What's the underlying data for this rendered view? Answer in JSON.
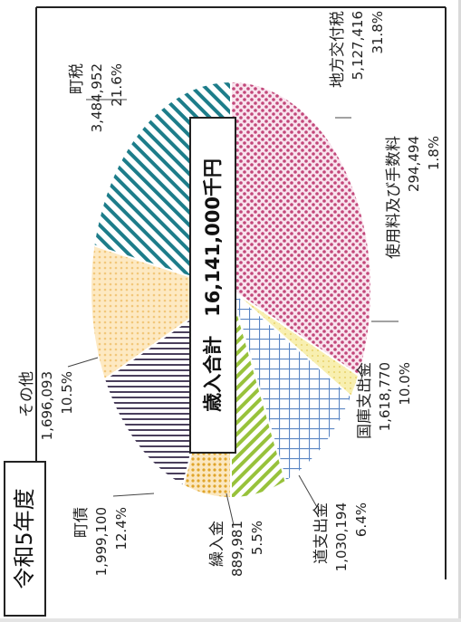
{
  "chart_data": {
    "type": "pie",
    "era_label": "令和5年度",
    "title": "歳入合計　16,141,000千円",
    "slices": [
      {
        "name": "地方交付税",
        "value": 5127416,
        "value_label": "5,127,416",
        "percent_label": "31.8%",
        "color": "#c2477a"
      },
      {
        "name": "使用料及び手数料",
        "value": 294494,
        "value_label": "294,494",
        "percent_label": "1.8%",
        "color": "#e8d26a"
      },
      {
        "name": "国庫支出金",
        "value": 1618770,
        "value_label": "1,618,770",
        "percent_label": "10.0%",
        "color": "#5b86c4"
      },
      {
        "name": "道支出金",
        "value": 1030194,
        "value_label": "1,030,194",
        "percent_label": "6.4%",
        "color": "#98c23b"
      },
      {
        "name": "繰入金",
        "value": 889981,
        "value_label": "889,981",
        "percent_label": "5.5%",
        "color": "#e0a52a"
      },
      {
        "name": "町債",
        "value": 1999100,
        "value_label": "1,999,100",
        "percent_label": "12.4%",
        "color": "#4a3f5c"
      },
      {
        "name": "その他",
        "value": 1696093,
        "value_label": "1,696,093",
        "percent_label": "10.5%",
        "color": "#f2c77a"
      },
      {
        "name": "町税",
        "value": 3484952,
        "value_label": "3,484,952",
        "percent_label": "21.6%",
        "color": "#1d7d8a"
      }
    ]
  }
}
